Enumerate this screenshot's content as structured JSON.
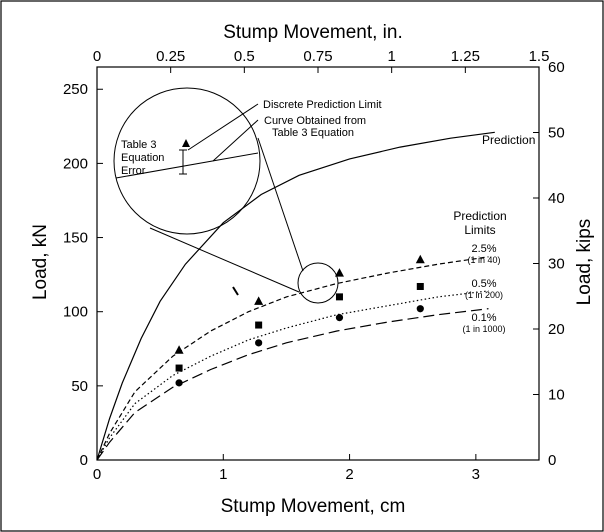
{
  "chart_data": {
    "type": "scatter",
    "xlabel": "Stump Movement, cm",
    "ylabel": "Load, kN",
    "x2label": "Stump Movement, in.",
    "y2label": "Load, kips",
    "xlim": [
      0,
      3.5
    ],
    "ylim": [
      0,
      265
    ],
    "x2lim": [
      0,
      1.5
    ],
    "y2lim": [
      0,
      60
    ],
    "x_ticks": [
      "0",
      "1",
      "2",
      "3"
    ],
    "y_ticks": [
      "0",
      "50",
      "100",
      "150",
      "200",
      "250"
    ],
    "x2_ticks": [
      "0",
      "0.25",
      "0.5",
      "0.75",
      "1",
      "1.25",
      "1.5"
    ],
    "y2_ticks": [
      "0",
      "10",
      "20",
      "30",
      "40",
      "50",
      "60"
    ],
    "grid": false,
    "series": [
      {
        "name": "Prediction",
        "style": "solid",
        "x": [
          0,
          0.1,
          0.2,
          0.35,
          0.5,
          0.7,
          1.0,
          1.3,
          1.6,
          2.0,
          2.4,
          2.8,
          3.15
        ],
        "y": [
          0,
          28,
          52,
          82,
          107,
          132,
          160,
          179,
          192,
          203,
          211,
          217,
          221
        ]
      },
      {
        "name": "2.5%",
        "sublabel": "(1 in 40)",
        "style": "short-dash",
        "x": [
          0,
          0.1,
          0.3,
          0.6,
          0.9,
          1.2,
          1.5,
          1.9,
          2.3,
          2.7,
          3.1
        ],
        "y": [
          0,
          18,
          46,
          70,
          87,
          100,
          110,
          119,
          126,
          132,
          137
        ]
      },
      {
        "name": "0.5%",
        "sublabel": "(1 in 200)",
        "style": "dotted",
        "x": [
          0,
          0.1,
          0.3,
          0.6,
          0.9,
          1.2,
          1.5,
          1.9,
          2.3,
          2.7,
          3.1
        ],
        "y": [
          0,
          15,
          38,
          57,
          70,
          81,
          89,
          98,
          104,
          110,
          114
        ]
      },
      {
        "name": "0.1%",
        "sublabel": "(1 in 1000)",
        "style": "long-dash",
        "x": [
          0,
          0.1,
          0.3,
          0.6,
          0.9,
          1.2,
          1.5,
          1.9,
          2.3,
          2.7,
          3.1
        ],
        "y": [
          0,
          12,
          32,
          49,
          61,
          71,
          79,
          87,
          93,
          98,
          102
        ]
      }
    ],
    "markers": [
      {
        "shape": "triangle",
        "x": [
          0.65,
          1.28,
          1.92,
          2.56
        ],
        "y": [
          74,
          107,
          126,
          135
        ]
      },
      {
        "shape": "square",
        "x": [
          0.65,
          1.28,
          1.92,
          2.56
        ],
        "y": [
          62,
          91,
          110,
          117
        ]
      },
      {
        "shape": "circle",
        "x": [
          0.65,
          1.28,
          1.92,
          2.56
        ],
        "y": [
          52,
          79,
          96,
          102
        ]
      }
    ],
    "annotations": {
      "prediction_label": "Prediction",
      "limits_title_1": "Prediction",
      "limits_title_2": "Limits",
      "discrete_limit": "Discrete Prediction Limit",
      "curve_line_1": "Curve Obtained from",
      "curve_line_2": "Table 3 Equation",
      "table_1": "Table 3",
      "table_2": "Equation",
      "table_3": "Error"
    }
  }
}
